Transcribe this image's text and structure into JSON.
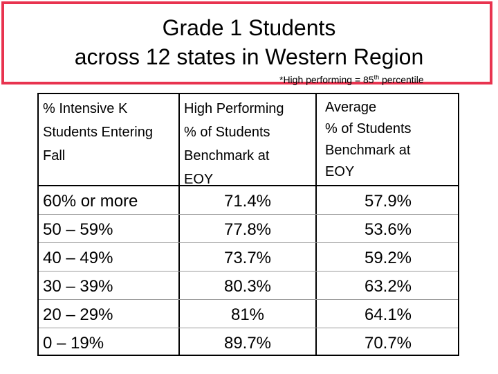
{
  "title": {
    "line1": "Grade 1 Students",
    "line2": "across 12 states in Western Region"
  },
  "footnote": {
    "prefix": "*High performing = 85",
    "sup": "th",
    "suffix": " percentile"
  },
  "table": {
    "headers": [
      [
        "% Intensive K",
        "Students Entering",
        "Fall"
      ],
      [
        "High Performing",
        "% of Students",
        "Benchmark at",
        "EOY"
      ],
      [
        "Average",
        "% of Students",
        "Benchmark at",
        "EOY"
      ]
    ],
    "rows": [
      {
        "range": "60% or more",
        "high": "71.4%",
        "average": "57.9%"
      },
      {
        "range": "50 – 59%",
        "high": "77.8%",
        "average": "53.6%"
      },
      {
        "range": "40 – 49%",
        "high": "73.7%",
        "average": "59.2%"
      },
      {
        "range": "30 – 39%",
        "high": "80.3%",
        "average": "63.2%"
      },
      {
        "range": "20 – 29%",
        "high": "81%",
        "average": "64.1%"
      },
      {
        "range": "0 – 19%",
        "high": "89.7%",
        "average": "70.7%"
      }
    ]
  },
  "colors": {
    "title_border": "#e8334f"
  }
}
